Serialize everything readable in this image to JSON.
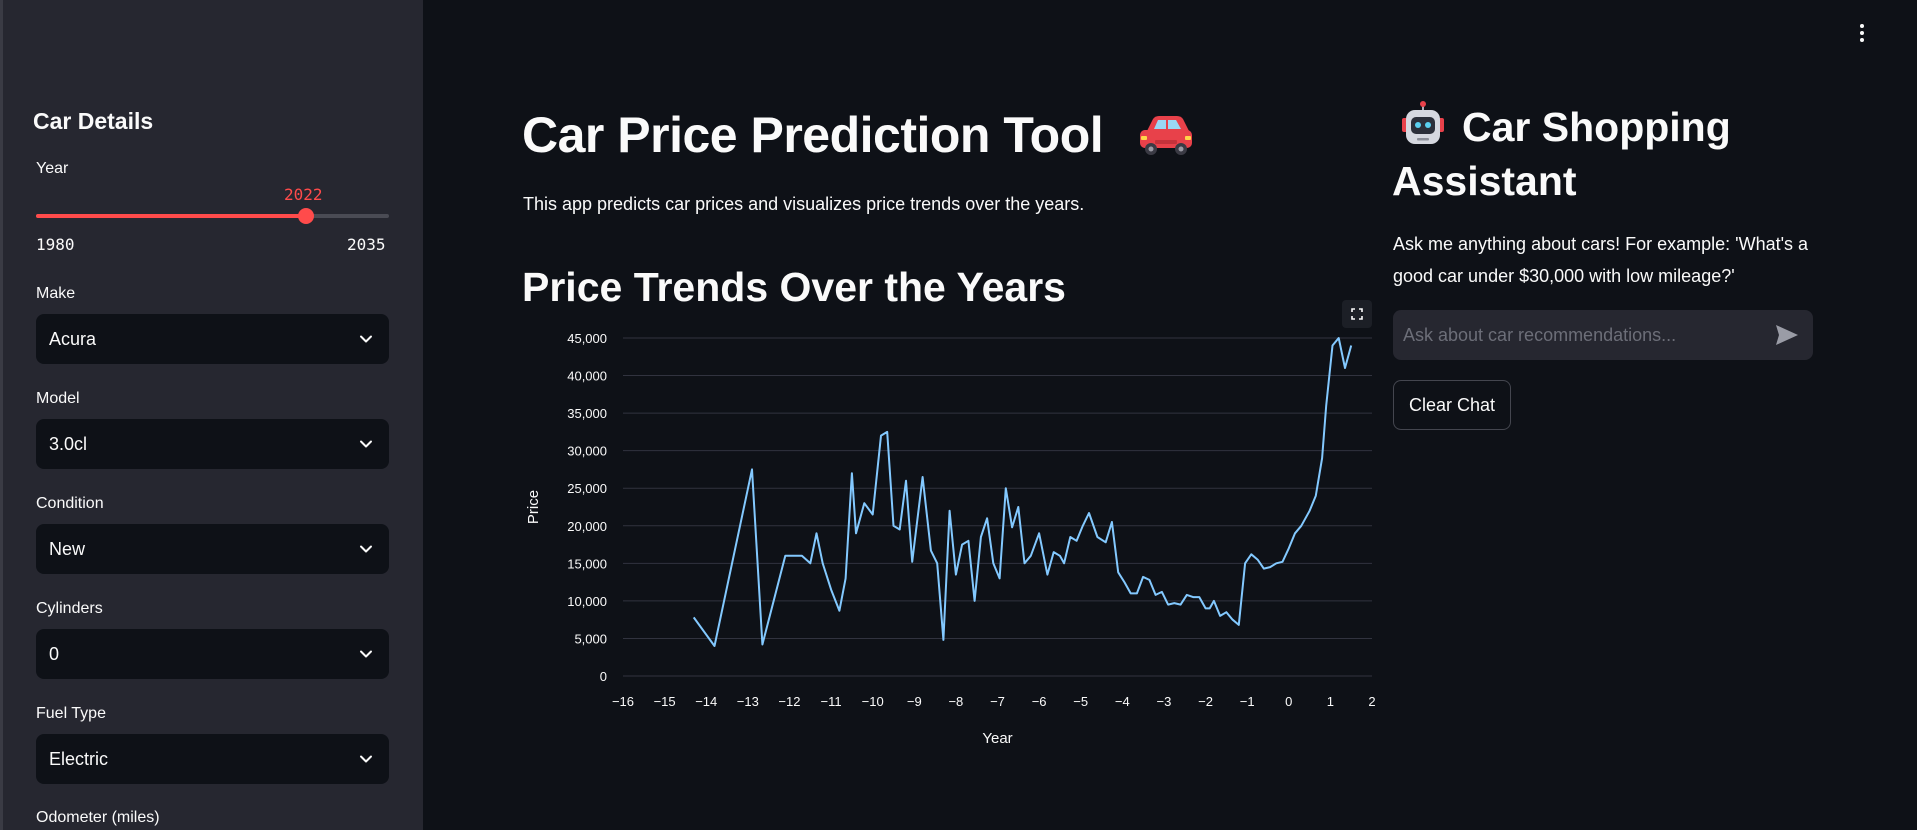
{
  "sidebar": {
    "heading": "Car Details",
    "year": {
      "label": "Year",
      "value": 2022,
      "min": 1980,
      "max": 2035
    },
    "make": {
      "label": "Make",
      "value": "Acura"
    },
    "model": {
      "label": "Model",
      "value": "3.0cl"
    },
    "condition": {
      "label": "Condition",
      "value": "New"
    },
    "cylinders": {
      "label": "Cylinders",
      "value": "0"
    },
    "fuel": {
      "label": "Fuel Type",
      "value": "Electric"
    },
    "odometer": {
      "label": "Odometer (miles)"
    }
  },
  "main": {
    "title": "Car Price Prediction Tool",
    "title_icon": "car-icon",
    "description": "This app predicts car prices and visualizes price trends over the years.",
    "section_title": "Price Trends Over the Years"
  },
  "chart_data": {
    "type": "line",
    "xlabel": "Year",
    "ylabel": "Price",
    "xlim": [
      -16,
      2
    ],
    "ylim": [
      0,
      45000
    ],
    "x_ticks": [
      "−16",
      "−15",
      "−14",
      "−13",
      "−12",
      "−11",
      "−10",
      "−9",
      "−8",
      "−7",
      "−6",
      "−5",
      "−4",
      "−3",
      "−2",
      "−1",
      "0",
      "1",
      "2"
    ],
    "y_ticks": [
      "0",
      "5,000",
      "10,000",
      "15,000",
      "20,000",
      "25,000",
      "30,000",
      "35,000",
      "40,000",
      "45,000"
    ],
    "line_color": "#83c9ff",
    "grid": true,
    "x": [
      -14.3,
      -13.8,
      -12.9,
      -12.65,
      -12.1,
      -11.7,
      -11.5,
      -11.35,
      -11.2,
      -11.0,
      -10.8,
      -10.65,
      -10.5,
      -10.4,
      -10.2,
      -10.0,
      -9.8,
      -9.65,
      -9.5,
      -9.35,
      -9.2,
      -9.05,
      -8.8,
      -8.6,
      -8.45,
      -8.3,
      -8.15,
      -8.0,
      -7.85,
      -7.7,
      -7.55,
      -7.4,
      -7.25,
      -7.1,
      -6.95,
      -6.8,
      -6.65,
      -6.5,
      -6.35,
      -6.2,
      -6.0,
      -5.8,
      -5.65,
      -5.5,
      -5.4,
      -5.25,
      -5.1,
      -4.95,
      -4.8,
      -4.6,
      -4.4,
      -4.25,
      -4.1,
      -3.95,
      -3.8,
      -3.65,
      -3.5,
      -3.35,
      -3.2,
      -3.05,
      -2.9,
      -2.75,
      -2.6,
      -2.45,
      -2.3,
      -2.15,
      -2.0,
      -1.9,
      -1.8,
      -1.65,
      -1.5,
      -1.35,
      -1.2,
      -1.05,
      -0.9,
      -0.75,
      -0.6,
      -0.45,
      -0.3,
      -0.15,
      0.0,
      0.15,
      0.3,
      0.5,
      0.65,
      0.8,
      0.9,
      1.05,
      1.2,
      1.35,
      1.5
    ],
    "y": [
      7800,
      4000,
      27500,
      4200,
      16000,
      16000,
      15000,
      19000,
      15000,
      11500,
      8700,
      13000,
      27000,
      19000,
      23000,
      21500,
      32000,
      32500,
      20000,
      19500,
      26000,
      15200,
      26500,
      16700,
      15000,
      4800,
      22000,
      13500,
      17500,
      18000,
      10000,
      18500,
      21000,
      15000,
      13000,
      25000,
      19800,
      22500,
      15000,
      16000,
      19000,
      13500,
      16500,
      16000,
      15000,
      18500,
      18000,
      20000,
      21700,
      18500,
      17800,
      20500,
      13800,
      12500,
      11000,
      11000,
      13200,
      12800,
      10800,
      11200,
      9500,
      9700,
      9500,
      10800,
      10500,
      10500,
      9000,
      9000,
      10000,
      8000,
      8500,
      7500,
      6800,
      15000,
      16200,
      15500,
      14300,
      14500,
      15000,
      15200,
      17000,
      19000,
      20000,
      22000,
      24000,
      29000,
      36000,
      44000,
      45000,
      41000,
      44000
    ]
  },
  "assistant": {
    "title": "Car Shopping Assistant",
    "title_icon": "robot-icon",
    "description": "Ask me anything about cars! For example: 'What's a good car under $30,000 with low mileage?'",
    "input_placeholder": "Ask about car recommendations...",
    "clear_label": "Clear Chat"
  },
  "colors": {
    "accent": "#ff4b4b",
    "background": "#0e1117",
    "sidebar": "#262730",
    "line": "#83c9ff"
  }
}
